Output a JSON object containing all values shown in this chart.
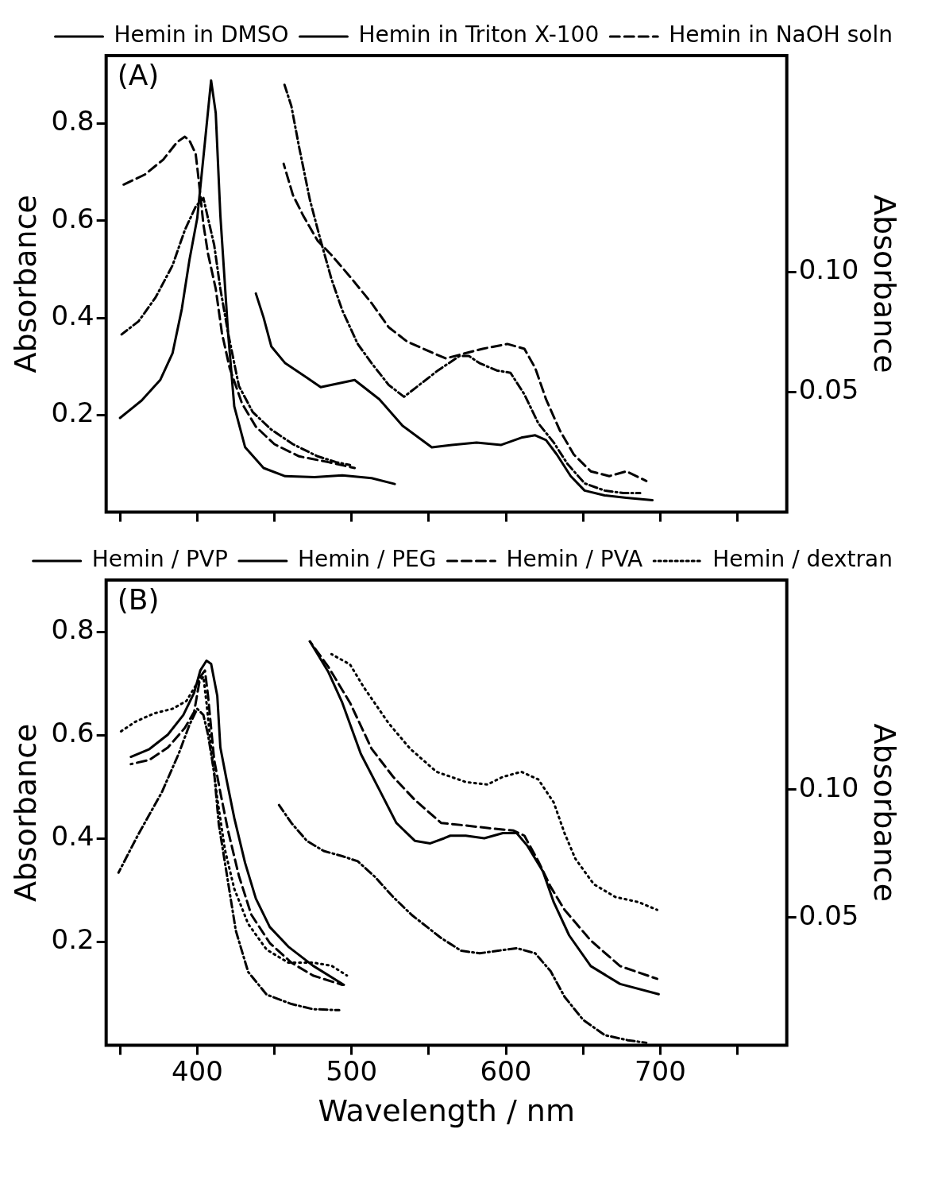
{
  "chart_data": [
    {
      "type": "line",
      "annotations": [
        "(A)"
      ],
      "ylabel": "Absorbance",
      "y2label": "Absorbance",
      "xlim": [
        341,
        782
      ],
      "xticks": [
        {
          "value": 350,
          "label": null
        },
        400,
        {
          "value": 450,
          "label": null
        },
        500,
        {
          "value": 550,
          "label": null
        },
        600,
        {
          "value": 650,
          "label": null
        },
        700,
        {
          "value": 750,
          "label": null
        }
      ],
      "ylim": [
        0,
        0.94
      ],
      "yticks": [
        0.2,
        0.4,
        0.6,
        0.8
      ],
      "y2lim": [
        0,
        0.19
      ],
      "y2ticks": [
        0.05,
        {
          "value": 0.1,
          "label": "0.10"
        }
      ],
      "tick_labels": "y",
      "grid": false,
      "legend": "top right",
      "marker": "none",
      "series": [
        {
          "name": "Hemin in DMSO",
          "color": "#000000",
          "line_style": "solid",
          "x": [
            350,
            364,
            376,
            384,
            390,
            395,
            400,
            405,
            409,
            412,
            415,
            420,
            424,
            431,
            443,
            457,
            476,
            494,
            513,
            528
          ],
          "values": [
            0.194,
            0.23,
            0.272,
            0.327,
            0.418,
            0.52,
            0.605,
            0.762,
            0.889,
            0.822,
            0.611,
            0.369,
            0.218,
            0.134,
            0.091,
            0.074,
            0.072,
            0.076,
            0.07,
            0.058
          ]
        },
        {
          "name": "Hemin in Triton X-100",
          "color": "#000000",
          "line_style": "dashdot",
          "x": [
            351,
            362,
            373,
            384,
            392,
            399,
            404,
            407,
            411,
            415,
            420,
            427,
            436,
            448,
            462,
            478,
            490,
            499
          ],
          "values": [
            0.366,
            0.393,
            0.442,
            0.508,
            0.581,
            0.629,
            0.647,
            0.605,
            0.55,
            0.46,
            0.369,
            0.26,
            0.206,
            0.17,
            0.14,
            0.115,
            0.103,
            0.097
          ]
        },
        {
          "name": "Hemin in NaOH soln",
          "color": "#000000",
          "line_style": "dashed",
          "x": [
            352,
            366,
            378,
            387,
            392,
            395,
            399,
            401,
            404,
            407,
            412,
            416,
            421,
            429,
            438,
            450,
            466,
            485,
            502
          ],
          "values": [
            0.674,
            0.695,
            0.726,
            0.762,
            0.773,
            0.765,
            0.738,
            0.683,
            0.593,
            0.532,
            0.46,
            0.369,
            0.297,
            0.224,
            0.176,
            0.14,
            0.115,
            0.103,
            0.091
          ]
        },
        {
          "color": "#000000",
          "line_style": "solid",
          "axis": "y2",
          "x": [
            438,
            443,
            448,
            457,
            471,
            480,
            502,
            518,
            533,
            552,
            565,
            581,
            597,
            610,
            619,
            626,
            633,
            642,
            651,
            664,
            678,
            695
          ],
          "values": [
            0.091,
            0.081,
            0.069,
            0.062,
            0.056,
            0.052,
            0.055,
            0.047,
            0.036,
            0.027,
            0.028,
            0.029,
            0.028,
            0.031,
            0.032,
            0.03,
            0.024,
            0.015,
            0.009,
            0.007,
            0.006,
            0.005
          ]
        },
        {
          "color": "#000000",
          "line_style": "dashdot",
          "axis": "y2",
          "x": [
            456,
            461,
            466,
            473,
            480,
            487,
            494,
            504,
            513,
            524,
            534,
            542,
            556,
            570,
            576,
            583,
            594,
            603,
            612,
            621,
            631,
            640,
            651,
            664,
            676,
            687
          ],
          "values": [
            0.179,
            0.169,
            0.152,
            0.13,
            0.113,
            0.097,
            0.084,
            0.07,
            0.062,
            0.053,
            0.048,
            0.052,
            0.059,
            0.065,
            0.065,
            0.062,
            0.059,
            0.058,
            0.049,
            0.037,
            0.029,
            0.02,
            0.012,
            0.009,
            0.008,
            0.008
          ]
        },
        {
          "color": "#000000",
          "line_style": "dashed",
          "axis": "y2",
          "x": [
            456,
            462,
            469,
            478,
            487,
            499,
            513,
            524,
            536,
            550,
            561,
            585,
            601,
            612,
            619,
            626,
            635,
            644,
            655,
            667,
            678,
            691
          ],
          "values": [
            0.145,
            0.132,
            0.123,
            0.113,
            0.107,
            0.098,
            0.087,
            0.077,
            0.071,
            0.067,
            0.064,
            0.068,
            0.07,
            0.068,
            0.06,
            0.047,
            0.034,
            0.024,
            0.017,
            0.015,
            0.017,
            0.013
          ]
        }
      ]
    },
    {
      "type": "line",
      "annotations": [
        "(B)"
      ],
      "xlabel": "Wavelength / nm",
      "ylabel": "Absorbance",
      "y2label": "Absorbance",
      "xlim": [
        341,
        782
      ],
      "xticks": [
        {
          "value": 350,
          "label": null
        },
        400,
        {
          "value": 450,
          "label": null
        },
        500,
        {
          "value": 550,
          "label": null
        },
        600,
        {
          "value": 650,
          "label": null
        },
        700,
        {
          "value": 750,
          "label": null
        }
      ],
      "ylim": [
        0,
        0.9
      ],
      "yticks": [
        0.2,
        0.4,
        0.6,
        0.8
      ],
      "y2lim": [
        0,
        0.182
      ],
      "y2ticks": [
        0.05,
        {
          "value": 0.1,
          "label": "0.10"
        }
      ],
      "grid": false,
      "legend": "top right",
      "marker": "none",
      "series": [
        {
          "name": "Hemin / PVP",
          "color": "#000000",
          "line_style": "solid",
          "x": [
            357,
            369,
            381,
            391,
            398,
            402,
            406,
            409,
            413,
            415,
            419,
            424,
            431,
            438,
            447,
            459,
            475,
            495
          ],
          "values": [
            0.558,
            0.573,
            0.601,
            0.639,
            0.682,
            0.725,
            0.744,
            0.738,
            0.676,
            0.576,
            0.514,
            0.44,
            0.353,
            0.284,
            0.229,
            0.191,
            0.154,
            0.117
          ]
        },
        {
          "name": "Hemin / PEG",
          "color": "#000000",
          "line_style": "dashdot",
          "x": [
            349,
            362,
            377,
            388,
            395,
            400,
            404,
            407,
            411,
            414,
            419,
            425,
            433,
            445,
            461,
            475,
            492
          ],
          "values": [
            0.334,
            0.409,
            0.489,
            0.564,
            0.62,
            0.651,
            0.639,
            0.601,
            0.527,
            0.427,
            0.334,
            0.222,
            0.142,
            0.098,
            0.08,
            0.07,
            0.068
          ]
        },
        {
          "name": "Hemin / PVA",
          "color": "#000000",
          "line_style": "dashed",
          "x": [
            357,
            369,
            381,
            392,
            398,
            402,
            405,
            407,
            411,
            415,
            420,
            427,
            435,
            447,
            461,
            475,
            494
          ],
          "values": [
            0.544,
            0.552,
            0.576,
            0.614,
            0.645,
            0.713,
            0.725,
            0.676,
            0.552,
            0.489,
            0.415,
            0.328,
            0.253,
            0.198,
            0.16,
            0.135,
            0.117
          ]
        },
        {
          "name": "Hemin / dextran",
          "color": "#000000",
          "line_style": "dotted",
          "x": [
            349,
            360,
            372,
            384,
            393,
            400,
            404,
            406,
            409,
            413,
            418,
            424,
            433,
            445,
            459,
            475,
            487,
            497
          ],
          "values": [
            0.604,
            0.626,
            0.642,
            0.651,
            0.666,
            0.701,
            0.713,
            0.663,
            0.576,
            0.477,
            0.378,
            0.303,
            0.235,
            0.185,
            0.16,
            0.16,
            0.154,
            0.135
          ]
        },
        {
          "color": "#000000",
          "line_style": "solid",
          "axis": "y2",
          "x": [
            473,
            485,
            494,
            506,
            518,
            529,
            541,
            551,
            560,
            564,
            574,
            586,
            598,
            607,
            614,
            624,
            631,
            641,
            655,
            674,
            699
          ],
          "values": [
            0.158,
            0.146,
            0.134,
            0.114,
            0.1,
            0.087,
            0.08,
            0.079,
            0.081,
            0.082,
            0.082,
            0.081,
            0.083,
            0.083,
            0.078,
            0.068,
            0.056,
            0.043,
            0.031,
            0.024,
            0.02
          ]
        },
        {
          "color": "#000000",
          "line_style": "dashdot",
          "axis": "y2",
          "x": [
            453,
            461,
            471,
            482,
            494,
            504,
            515,
            527,
            539,
            558,
            571,
            583,
            595,
            607,
            619,
            629,
            638,
            650,
            664,
            679,
            691
          ],
          "values": [
            0.094,
            0.087,
            0.08,
            0.076,
            0.074,
            0.072,
            0.066,
            0.058,
            0.051,
            0.042,
            0.037,
            0.036,
            0.037,
            0.038,
            0.036,
            0.029,
            0.019,
            0.01,
            0.004,
            0.002,
            0.001
          ]
        },
        {
          "color": "#000000",
          "line_style": "dashed",
          "axis": "y2",
          "x": [
            473,
            485,
            499,
            513,
            527,
            541,
            558,
            574,
            588,
            605,
            612,
            621,
            629,
            638,
            655,
            674,
            698
          ],
          "values": [
            0.158,
            0.148,
            0.134,
            0.116,
            0.105,
            0.096,
            0.087,
            0.086,
            0.085,
            0.084,
            0.082,
            0.072,
            0.062,
            0.053,
            0.041,
            0.031,
            0.026
          ]
        },
        {
          "color": "#000000",
          "line_style": "dotted",
          "axis": "y2",
          "x": [
            487,
            499,
            508,
            524,
            538,
            555,
            574,
            588,
            598,
            610,
            621,
            631,
            638,
            645,
            657,
            671,
            686,
            698
          ],
          "values": [
            0.153,
            0.149,
            0.14,
            0.126,
            0.116,
            0.107,
            0.103,
            0.102,
            0.105,
            0.107,
            0.104,
            0.095,
            0.083,
            0.073,
            0.063,
            0.058,
            0.056,
            0.053
          ]
        }
      ]
    }
  ]
}
